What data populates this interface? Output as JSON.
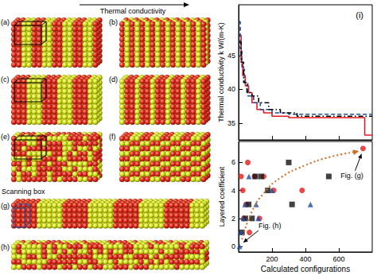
{
  "chart_data": [
    {
      "type": "line",
      "title": "(i)",
      "ylabel": "Thermal conductivity k W/(m-K)",
      "xlim": [
        0,
        800
      ],
      "xticks": [
        200,
        400,
        600
      ],
      "ylim": [
        32.5,
        52.5
      ],
      "yticks": [
        35,
        40,
        45
      ],
      "tick_labels": "y",
      "series": [
        {
          "color": "#e41a1c",
          "line_style": "solid",
          "x": [
            5,
            15,
            25,
            40,
            60,
            80,
            110,
            150,
            200,
            300,
            755,
            800
          ],
          "values": [
            48,
            44,
            42,
            40.5,
            39.5,
            38,
            37,
            36.5,
            36,
            35.8,
            33.2,
            33.2
          ]
        },
        {
          "color": "#1f4e9e",
          "line_style": "dashed",
          "x": [
            3,
            10,
            20,
            35,
            55,
            90,
            130,
            200,
            300,
            800
          ],
          "values": [
            50,
            46,
            43,
            41,
            39,
            38,
            37,
            36.5,
            36.3,
            36.3
          ]
        },
        {
          "color": "#000000",
          "line_style": "dashdot",
          "x": [
            5,
            15,
            30,
            50,
            80,
            120,
            180,
            250,
            350,
            800
          ],
          "values": [
            47,
            44,
            41,
            39.5,
            39,
            38,
            37,
            36.5,
            36,
            36
          ]
        }
      ]
    },
    {
      "type": "scatter",
      "xlabel": "Calculated configurations",
      "ylabel": "Layered coefficient",
      "xlim": [
        0,
        800
      ],
      "xticks": [
        200,
        400,
        600
      ],
      "ylim": [
        -0.4,
        7.5
      ],
      "yticks": [
        0,
        2,
        4,
        6
      ],
      "series": [
        {
          "type": "scatter",
          "marker": "circle",
          "color": "#e41a1c",
          "x": [
            15,
            25,
            30,
            45,
            55,
            65,
            95,
            125,
            150,
            210,
            380,
            745
          ],
          "values": [
            5,
            4,
            2,
            3,
            6,
            1,
            5,
            2,
            5,
            4,
            4,
            7
          ]
        },
        {
          "type": "scatter",
          "marker": "square",
          "color": "#111111",
          "x": [
            20,
            40,
            60,
            80,
            100,
            135,
            175,
            300,
            320,
            540
          ],
          "values": [
            1,
            2,
            3,
            2,
            5,
            5,
            4,
            6,
            3,
            5
          ]
        },
        {
          "type": "scatter",
          "marker": "triangle",
          "color": "#1f4e9e",
          "x": [
            5,
            12,
            28,
            38,
            62,
            105,
            118,
            200,
            430
          ],
          "values": [
            0,
            1,
            2,
            3,
            5,
            3,
            2,
            4,
            3
          ]
        },
        {
          "type": "line",
          "line_style": "dotted",
          "color": "#d2691e",
          "marker": "arrow",
          "x": [
            20,
            80,
            150,
            250,
            400,
            550,
            720
          ],
          "values": [
            0.5,
            2.5,
            3.8,
            4.9,
            5.8,
            6.4,
            6.8
          ]
        }
      ],
      "annotations": [
        {
          "text": "Fig. (g)",
          "x": 745,
          "y": 7
        },
        {
          "text": "Fig. (h)",
          "x": 5,
          "y": 0
        }
      ]
    }
  ],
  "structures": {
    "arrow_label": "Thermal conductivity",
    "panel_labels": [
      "(a)",
      "(b)",
      "(c)",
      "(d)",
      "(e)",
      "(f)",
      "(g)",
      "(h)"
    ],
    "scanning_box_label": "Scanning box"
  }
}
